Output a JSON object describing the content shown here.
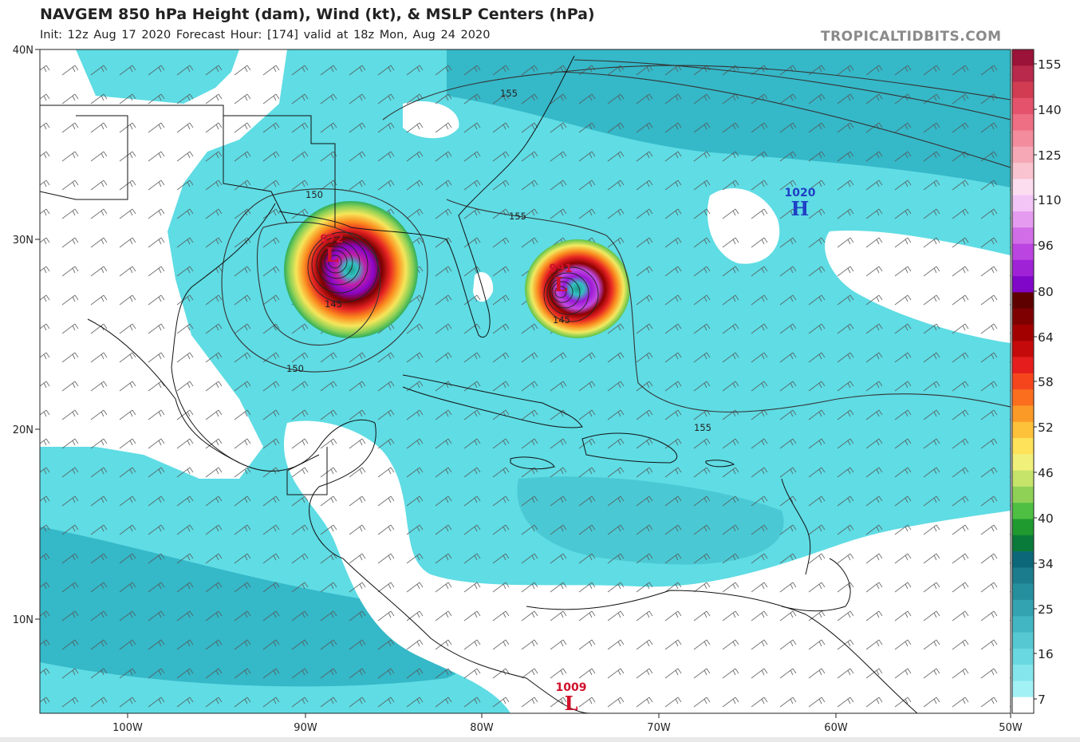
{
  "header": {
    "title": "NAVGEM 850 hPa Height (dam), Wind (kt), & MSLP Centers (hPa)",
    "subtitle": "Init: 12z Aug 17 2020   Forecast Hour: [174]   valid at 18z Mon, Aug 24 2020",
    "brand": "TROPICALTIDBITS.COM"
  },
  "axes": {
    "lat_labels": [
      "40N",
      "30N",
      "20N",
      "10N"
    ],
    "lon_labels": [
      "100W",
      "90W",
      "80W",
      "70W",
      "60W",
      "50W"
    ]
  },
  "colorbar": {
    "labels": [
      "155",
      "140",
      "125",
      "110",
      "96",
      "80",
      "64",
      "58",
      "52",
      "46",
      "40",
      "34",
      "25",
      "16",
      "7"
    ],
    "colors": [
      "#9b1338",
      "#b8294b",
      "#d23c53",
      "#e4536b",
      "#ee6f83",
      "#f38c9c",
      "#f6a8b6",
      "#f9c3cf",
      "#fcdcef",
      "#f3c5f7",
      "#e59cf0",
      "#d26de8",
      "#bb45e0",
      "#9f22d6",
      "#8006c8",
      "#5e0000",
      "#7e0000",
      "#a20000",
      "#c40a0a",
      "#e51d1d",
      "#f5451d",
      "#fa6e1e",
      "#fc9a28",
      "#fdc13a",
      "#fde25a",
      "#f1f07a",
      "#c6e46a",
      "#8fd156",
      "#4fbf43",
      "#1e9a2e",
      "#0a7a3a",
      "#0c6878",
      "#1a7c8c",
      "#258f9e",
      "#33a3b1",
      "#42b6c2",
      "#55c8d2",
      "#6ad8e0",
      "#84e6ec",
      "#a2f1f5",
      "#ffffff"
    ]
  },
  "contours": {
    "labels": [
      "155",
      "155",
      "150",
      "150",
      "145",
      "145",
      "155"
    ]
  },
  "pressure_centers": [
    {
      "value": "972",
      "symbol": "L",
      "type": "low",
      "color": "#d0112b"
    },
    {
      "value": "991",
      "symbol": "L",
      "type": "low",
      "color": "#d0112b"
    },
    {
      "value": "1020",
      "symbol": "H",
      "type": "high",
      "color": "#1f3fc6"
    },
    {
      "value": "1009",
      "symbol": "L",
      "type": "low",
      "color": "#d0112b"
    }
  ]
}
